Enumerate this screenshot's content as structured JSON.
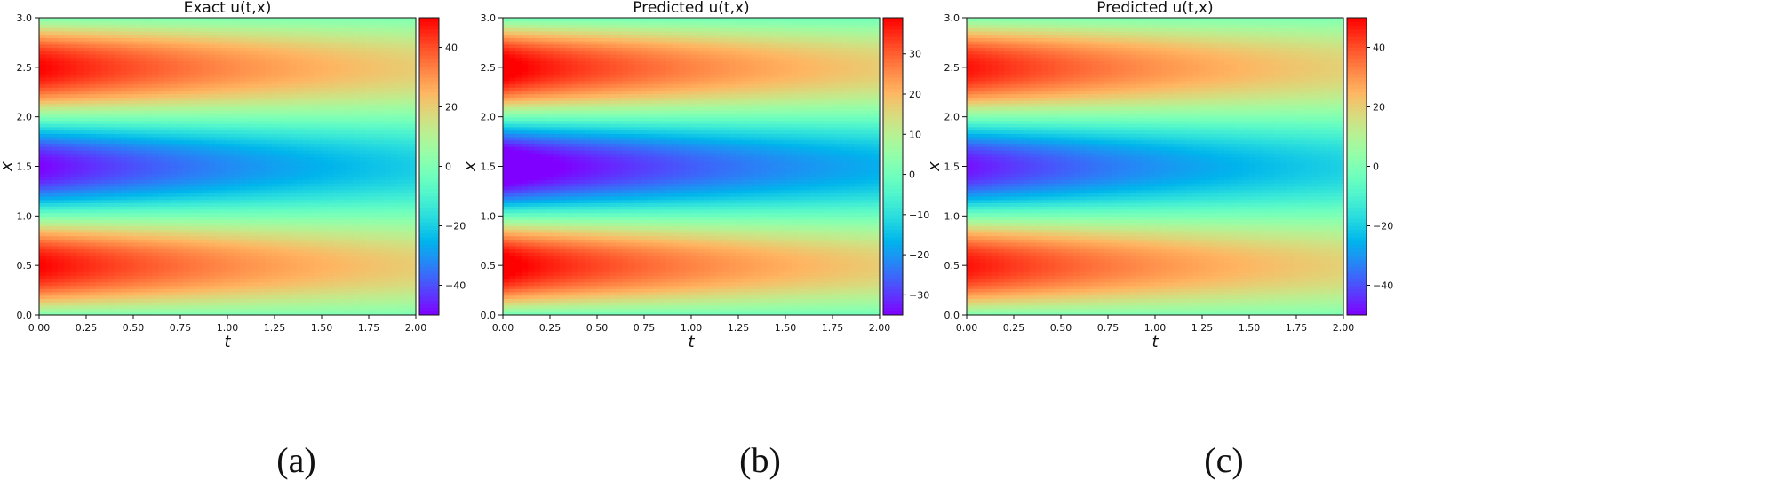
{
  "figure": {
    "panels": [
      {
        "caption": "(a)"
      },
      {
        "caption": "(b)"
      },
      {
        "caption": "(c)"
      }
    ]
  },
  "chart_data": [
    {
      "type": "heatmap",
      "title": "Exact u(t,x)",
      "xlabel": "t",
      "ylabel": "x",
      "xlim": [
        0,
        2
      ],
      "ylim": [
        0,
        3
      ],
      "xticks": [
        0.0,
        0.25,
        0.5,
        0.75,
        1.0,
        1.25,
        1.5,
        1.75,
        2.0
      ],
      "xtick_labels": [
        "0.00",
        "0.25",
        "0.50",
        "0.75",
        "1.00",
        "1.25",
        "1.50",
        "1.75",
        "2.00"
      ],
      "yticks": [
        0.0,
        0.5,
        1.0,
        1.5,
        2.0,
        2.5,
        3.0
      ],
      "ytick_labels": [
        "0.0",
        "0.5",
        "1.0",
        "1.5",
        "2.0",
        "2.5",
        "3.0"
      ],
      "colorbar": {
        "min": -50,
        "max": 50,
        "ticks": [
          -40,
          -20,
          0,
          20,
          40
        ],
        "tick_labels": [
          "−40",
          "−20",
          "0",
          "20",
          "40"
        ]
      },
      "field": {
        "amplitude": 50,
        "decay": 0.45,
        "min_value": -50,
        "max_value": 50,
        "warmup": 0.0
      },
      "colormap": "rainbow"
    },
    {
      "type": "heatmap",
      "title": "Predicted u(t,x)",
      "xlabel": "t",
      "ylabel": "x",
      "xlim": [
        0,
        2
      ],
      "ylim": [
        0,
        3
      ],
      "xticks": [
        0.0,
        0.25,
        0.5,
        0.75,
        1.0,
        1.25,
        1.5,
        1.75,
        2.0
      ],
      "xtick_labels": [
        "0.00",
        "0.25",
        "0.50",
        "0.75",
        "1.00",
        "1.25",
        "1.50",
        "1.75",
        "2.00"
      ],
      "yticks": [
        0.0,
        0.5,
        1.0,
        1.5,
        2.0,
        2.5,
        3.0
      ],
      "ytick_labels": [
        "0.0",
        "0.5",
        "1.0",
        "1.5",
        "2.0",
        "2.5",
        "3.0"
      ],
      "colorbar": {
        "min": -35,
        "max": 39,
        "ticks": [
          -30,
          -20,
          -10,
          0,
          10,
          20,
          30
        ],
        "tick_labels": [
          "−30",
          "−20",
          "−10",
          "0",
          "10",
          "20",
          "30"
        ]
      },
      "field": {
        "amplitude": 40,
        "decay": 0.42,
        "min_value": -35,
        "max_value": 39,
        "warmup": 0.05
      },
      "colormap": "rainbow"
    },
    {
      "type": "heatmap",
      "title": "Predicted u(t,x)",
      "xlabel": "t",
      "ylabel": "x",
      "xlim": [
        0,
        2
      ],
      "ylim": [
        0,
        3
      ],
      "xticks": [
        0.0,
        0.25,
        0.5,
        0.75,
        1.0,
        1.25,
        1.5,
        1.75,
        2.0
      ],
      "xtick_labels": [
        "0.00",
        "0.25",
        "0.50",
        "0.75",
        "1.00",
        "1.25",
        "1.50",
        "1.75",
        "2.00"
      ],
      "yticks": [
        0.0,
        0.5,
        1.0,
        1.5,
        2.0,
        2.5,
        3.0
      ],
      "ytick_labels": [
        "0.0",
        "0.5",
        "1.0",
        "1.5",
        "2.0",
        "2.5",
        "3.0"
      ],
      "colorbar": {
        "min": -50,
        "max": 50,
        "ticks": [
          -40,
          -20,
          0,
          20,
          40
        ],
        "tick_labels": [
          "−40",
          "−20",
          "0",
          "20",
          "40"
        ]
      },
      "field": {
        "amplitude": 48,
        "decay": 0.45,
        "min_value": -50,
        "max_value": 50,
        "warmup": 0.0
      },
      "colormap": "rainbow"
    }
  ]
}
